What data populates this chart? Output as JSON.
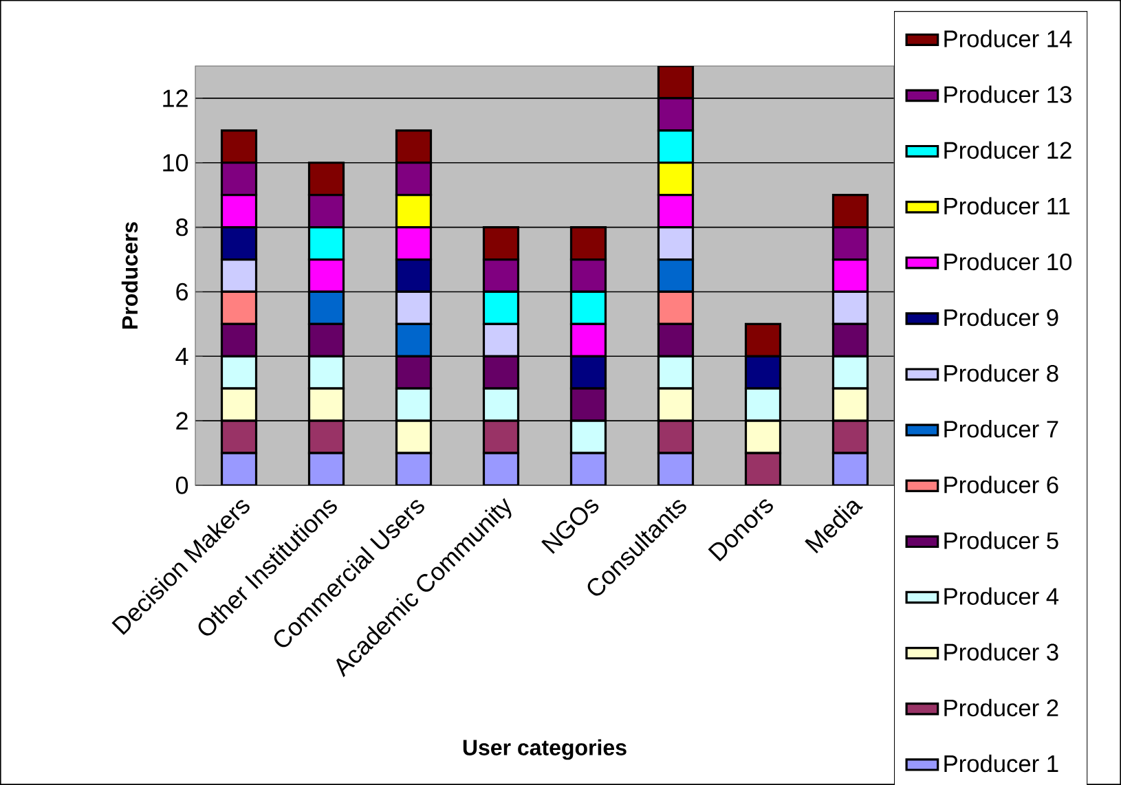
{
  "chart_data": {
    "type": "bar",
    "stacked": true,
    "xlabel": "User categories",
    "ylabel": "Producers",
    "categories": [
      "Decision Makers",
      "Other Institutions",
      "Commercial Users",
      "Academic Community",
      "NGOs",
      "Consultants",
      "Donors",
      "Media"
    ],
    "ylim": [
      0,
      13
    ],
    "yticks": [
      0,
      2,
      4,
      6,
      8,
      10,
      12
    ],
    "grid": "y",
    "legend": "right",
    "series": [
      {
        "name": "Producer 1",
        "color": "#9999ff",
        "values": [
          1,
          1,
          1,
          1,
          1,
          1,
          0,
          1
        ]
      },
      {
        "name": "Producer 2",
        "color": "#993366",
        "values": [
          1,
          1,
          0,
          1,
          0,
          1,
          1,
          1
        ]
      },
      {
        "name": "Producer 3",
        "color": "#ffffcc",
        "values": [
          1,
          1,
          1,
          0,
          0,
          1,
          1,
          1
        ]
      },
      {
        "name": "Producer 4",
        "color": "#ccffff",
        "values": [
          1,
          1,
          1,
          1,
          1,
          1,
          1,
          1
        ]
      },
      {
        "name": "Producer 5",
        "color": "#660066",
        "values": [
          1,
          1,
          1,
          1,
          1,
          1,
          0,
          1
        ]
      },
      {
        "name": "Producer 6",
        "color": "#ff8080",
        "values": [
          1,
          0,
          0,
          0,
          0,
          1,
          0,
          0
        ]
      },
      {
        "name": "Producer 7",
        "color": "#0066cc",
        "values": [
          0,
          1,
          1,
          0,
          0,
          1,
          0,
          0
        ]
      },
      {
        "name": "Producer 8",
        "color": "#ccccff",
        "values": [
          1,
          0,
          1,
          1,
          0,
          1,
          0,
          1
        ]
      },
      {
        "name": "Producer 9",
        "color": "#000080",
        "values": [
          1,
          0,
          1,
          0,
          1,
          0,
          1,
          0
        ]
      },
      {
        "name": "Producer 10",
        "color": "#ff00ff",
        "values": [
          1,
          1,
          1,
          0,
          1,
          1,
          0,
          1
        ]
      },
      {
        "name": "Producer 11",
        "color": "#ffff00",
        "values": [
          0,
          0,
          1,
          0,
          0,
          1,
          0,
          0
        ]
      },
      {
        "name": "Producer 12",
        "color": "#00ffff",
        "values": [
          0,
          1,
          0,
          1,
          1,
          1,
          0,
          0
        ]
      },
      {
        "name": "Producer 13",
        "color": "#800080",
        "values": [
          1,
          1,
          1,
          1,
          1,
          1,
          0,
          1
        ]
      },
      {
        "name": "Producer 14",
        "color": "#800000",
        "values": [
          1,
          1,
          1,
          1,
          1,
          1,
          1,
          1
        ]
      }
    ]
  }
}
